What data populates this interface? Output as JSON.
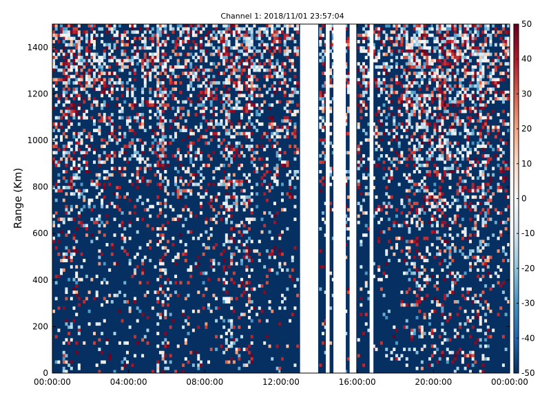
{
  "chart_data": {
    "type": "heatmap",
    "title": "Channel 1: 2018/11/01 23:57:04",
    "ylabel": "Range (Km)",
    "xlabel": "",
    "x_ticks": [
      "00:00:00",
      "04:00:00",
      "08:00:00",
      "12:00:00",
      "16:00:00",
      "20:00:00",
      "00:00:00"
    ],
    "y_ticks": [
      0,
      200,
      400,
      600,
      800,
      1000,
      1200,
      1400
    ],
    "xlim_hours": [
      0,
      24
    ],
    "ylim": [
      0,
      1500
    ],
    "colorbar": {
      "min": -50,
      "max": 50,
      "ticks": [
        50,
        40,
        30,
        20,
        10,
        0,
        -10,
        -20,
        -30,
        -40,
        -50
      ],
      "colormap": "RdBu_r",
      "colors": [
        "#053061",
        "#2166ac",
        "#4393c3",
        "#92c5de",
        "#d1e5f0",
        "#f7f7f7",
        "#fddbc7",
        "#f4a582",
        "#d6604d",
        "#b2182b",
        "#67001f"
      ]
    },
    "grid": false,
    "data_gaps_hours": [
      [
        13.0,
        13.95
      ],
      [
        14.35,
        14.55
      ],
      [
        14.75,
        15.4
      ],
      [
        15.6,
        15.95
      ],
      [
        16.65,
        16.85
      ]
    ],
    "dominant_value": -50,
    "noise_bands_hours": [
      [
        0.5,
        1.5
      ],
      [
        5.5,
        6.0
      ],
      [
        9.0,
        10.5
      ],
      [
        18.5,
        23.0
      ]
    ]
  }
}
